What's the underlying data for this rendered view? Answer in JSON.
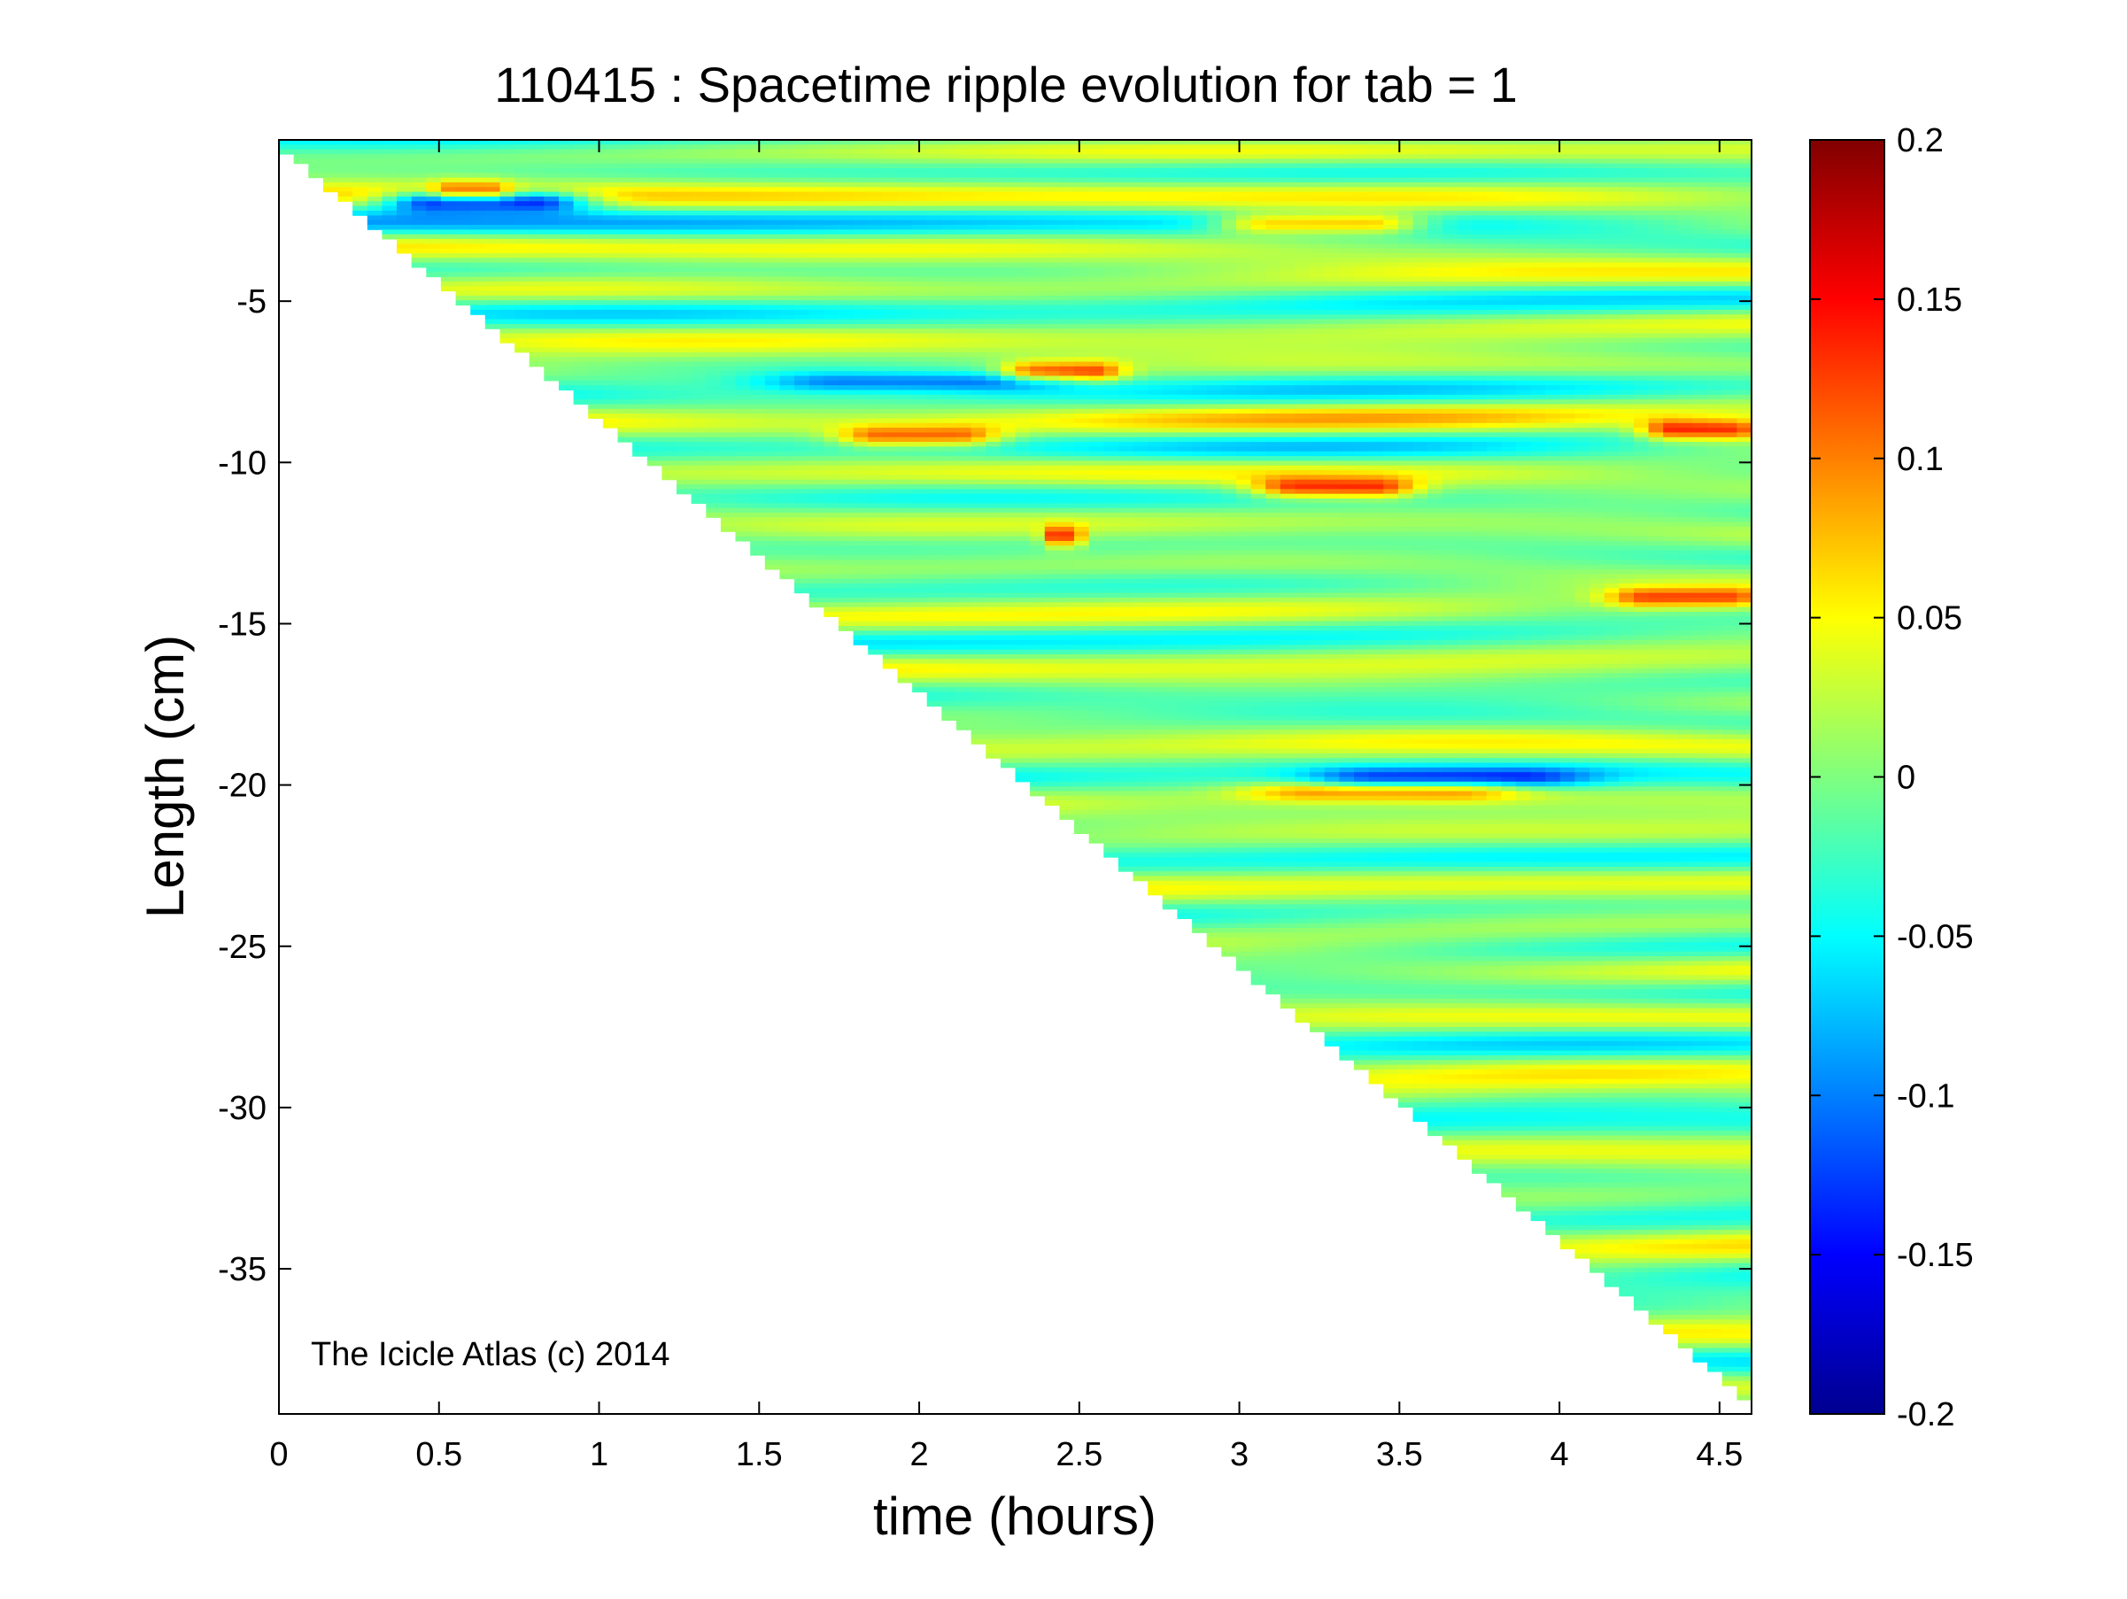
{
  "chart_data": {
    "type": "heatmap",
    "title": "110415 : Spacetime ripple evolution for tab = 1",
    "xlabel": "time (hours)",
    "ylabel": "Length (cm)",
    "xlim": [
      0,
      4.6
    ],
    "ylim": [
      -39.5,
      0
    ],
    "xticks": [
      0,
      0.5,
      1,
      1.5,
      2,
      2.5,
      3,
      3.5,
      4,
      4.5
    ],
    "xtick_labels": [
      "0",
      "0.5",
      "1",
      "1.5",
      "2",
      "2.5",
      "3",
      "3.5",
      "4",
      "4.5"
    ],
    "yticks": [
      -5,
      -10,
      -15,
      -20,
      -25,
      -30,
      -35
    ],
    "ytick_labels": [
      "-5",
      "-10",
      "-15",
      "-20",
      "-25",
      "-30",
      "-35"
    ],
    "colormap": "jet",
    "clim": [
      -0.2,
      0.2
    ],
    "colorbar_ticks": [
      0.2,
      0.15,
      0.1,
      0.05,
      0,
      -0.05,
      -0.1,
      -0.15,
      -0.2
    ],
    "colorbar_tick_labels": [
      "0.2",
      "0.15",
      "0.1",
      "0.05",
      "0",
      "-0.05",
      "-0.1",
      "-0.15",
      "-0.2"
    ],
    "annotation": "The Icicle Atlas (c) 2014",
    "data_region": "Lower-left triangle is empty; the icicle tip grows from about 0 cm at t=0 to about -39 cm at t=4.6 hours",
    "tip_growth": {
      "t": [
        0,
        4.6
      ],
      "length": [
        0,
        -39
      ]
    },
    "notable_features": [
      {
        "t": [
          3.0,
          3.5
        ],
        "length": -2.6,
        "sign": "positive",
        "peak": 0.12
      },
      {
        "t": [
          2.3,
          2.6
        ],
        "length": -7.2,
        "sign": "positive",
        "peak": 0.13
      },
      {
        "t": [
          1.6,
          2.4
        ],
        "length": -7.5,
        "sign": "negative",
        "peak": -0.09
      },
      {
        "t": [
          1.8,
          2.2
        ],
        "length": -9.2,
        "sign": "positive",
        "peak": 0.11
      },
      {
        "t": [
          3.1,
          3.5
        ],
        "length": -10.8,
        "sign": "positive",
        "peak": 0.13
      },
      {
        "t": [
          2.4,
          2.5
        ],
        "length": -12.3,
        "sign": "positive",
        "peak": 0.12
      },
      {
        "t": [
          4.3,
          4.6
        ],
        "length": -9.0,
        "sign": "positive",
        "peak": 0.14
      },
      {
        "t": [
          4.2,
          4.6
        ],
        "length": -14.2,
        "sign": "positive",
        "peak": 0.12
      },
      {
        "t": [
          3.1,
          3.8
        ],
        "length": -20.2,
        "sign": "positive",
        "peak": 0.09
      },
      {
        "t": [
          3.3,
          4.0
        ],
        "length": -19.8,
        "sign": "negative",
        "peak": -0.1
      },
      {
        "t": [
          0.4,
          0.9
        ],
        "length": -1.9,
        "sign": "negative",
        "peak": -0.18
      },
      {
        "t": [
          0.5,
          0.7
        ],
        "length": -1.6,
        "sign": "positive",
        "peak": 0.09
      }
    ]
  }
}
